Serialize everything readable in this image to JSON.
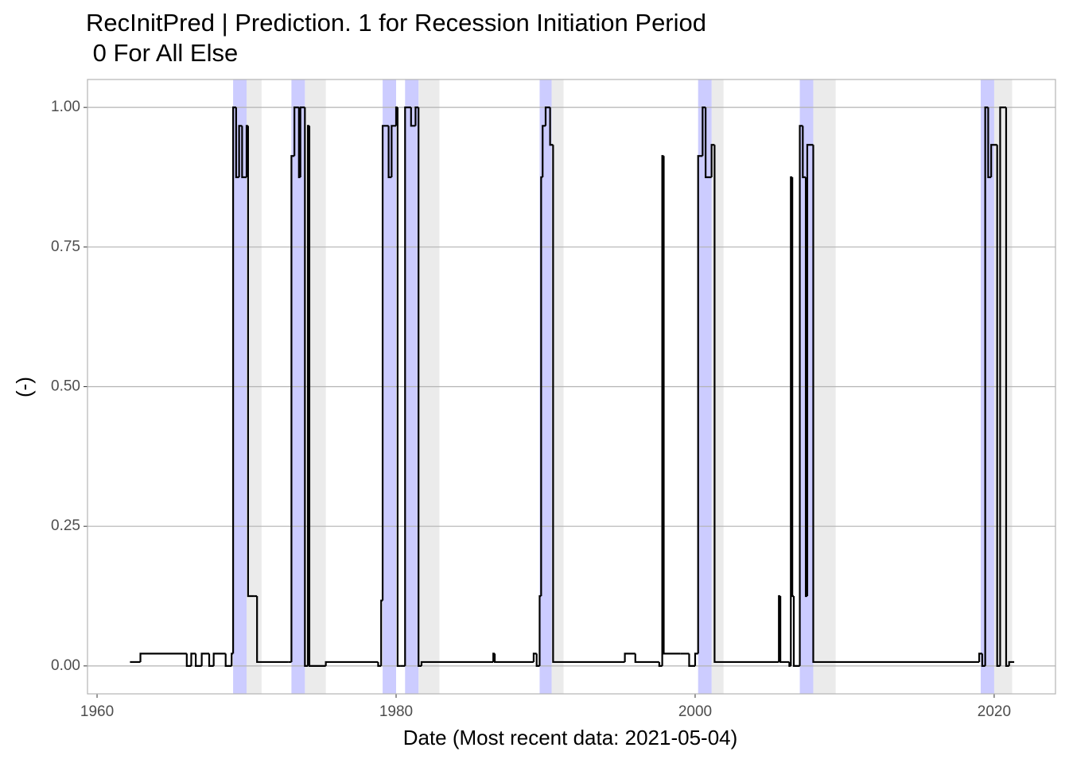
{
  "chart_data": {
    "type": "step",
    "title": "RecInitPred | Prediction. 1 for Recession Initiation Period\n 0 For All Else",
    "x_label": "Date (Most recent data: 2021-05-04)",
    "y_label": "(-)",
    "xlim": [
      1959.36,
      2024.1
    ],
    "xticks": [
      1960,
      1980,
      2000,
      2020
    ],
    "ylim": [
      -0.05,
      1.05
    ],
    "yticks": [
      {
        "value": 0,
        "label": "0.00"
      },
      {
        "value": 0.25,
        "label": "0.25"
      },
      {
        "value": 0.5,
        "label": "0.50"
      },
      {
        "value": 0.75,
        "label": "0.75"
      },
      {
        "value": 1,
        "label": "1.00"
      }
    ],
    "grid": true,
    "color": "#000000",
    "initiation_color": "#ccccff",
    "recession_color": "#ebebeb",
    "initiation_periods": [
      [
        1969.1,
        1970.0
      ],
      [
        1973.0,
        1973.9
      ],
      [
        1979.1,
        1980.0
      ],
      [
        1980.6,
        1981.5
      ],
      [
        1989.6,
        1990.4
      ],
      [
        2000.2,
        2001.1
      ],
      [
        2007.0,
        2007.9
      ],
      [
        2019.1,
        2020.0
      ]
    ],
    "recession_periods": [
      [
        1970.0,
        1971.0
      ],
      [
        1973.9,
        1975.3
      ],
      [
        1981.5,
        1982.9
      ],
      [
        1990.4,
        1991.2
      ],
      [
        2001.1,
        2001.9
      ],
      [
        2007.9,
        2009.4
      ],
      [
        2020.0,
        2021.2
      ]
    ],
    "x": [
      1962.2,
      1962.9,
      1966.0,
      1966.3,
      1966.6,
      1967.0,
      1967.5,
      1967.8,
      1968.6,
      1969.0,
      1969.1,
      1969.3,
      1969.5,
      1969.7,
      1970.0,
      1970.1,
      1970.5,
      1970.7,
      1972.8,
      1973.0,
      1973.2,
      1973.5,
      1973.6,
      1973.9,
      1974.1,
      1974.2,
      1975.3,
      1978.8,
      1979.0,
      1979.1,
      1979.5,
      1979.7,
      1980.0,
      1980.1,
      1980.3,
      1980.6,
      1981.0,
      1981.3,
      1981.5,
      1981.7,
      1986.5,
      1986.6,
      1989.2,
      1989.4,
      1989.6,
      1989.7,
      1989.8,
      1990.0,
      1990.3,
      1990.5,
      1995.3,
      1996.0,
      1997.6,
      1997.8,
      1997.9,
      1999.0,
      1999.6,
      2000.0,
      2000.2,
      2000.5,
      2000.7,
      2001.1,
      2001.3,
      2005.6,
      2005.7,
      2006.3,
      2006.4,
      2006.5,
      2006.6,
      2007.0,
      2007.2,
      2007.4,
      2007.5,
      2007.9,
      2019.0,
      2019.2,
      2019.4,
      2019.6,
      2019.8,
      2020.2,
      2020.4,
      2020.8,
      2021.0,
      2021.34
    ],
    "values": [
      0.007,
      0.022,
      0.0,
      0.022,
      0.0,
      0.022,
      0.0,
      0.022,
      0.0,
      0.022,
      1.0,
      0.875,
      0.967,
      0.875,
      0.967,
      0.125,
      0.125,
      0.007,
      0.007,
      0.913,
      1.0,
      0.875,
      1.0,
      0.0,
      0.967,
      0.0,
      0.007,
      0.0,
      0.117,
      0.967,
      0.875,
      0.967,
      1.0,
      0.0,
      0.0,
      1.0,
      0.967,
      1.0,
      0.0,
      0.007,
      0.022,
      0.007,
      0.022,
      0.0,
      0.125,
      0.875,
      0.967,
      1.0,
      0.933,
      0.007,
      0.022,
      0.007,
      0.0,
      0.913,
      0.022,
      0.022,
      0.0,
      0.022,
      0.913,
      1.0,
      0.875,
      0.933,
      0.007,
      0.125,
      0.007,
      0.0,
      0.875,
      0.125,
      0.0,
      0.967,
      0.875,
      0.125,
      0.933,
      0.007,
      0.022,
      0.0,
      1.0,
      0.875,
      0.933,
      0.0,
      1.0,
      0.0,
      0.007,
      0.007
    ]
  }
}
